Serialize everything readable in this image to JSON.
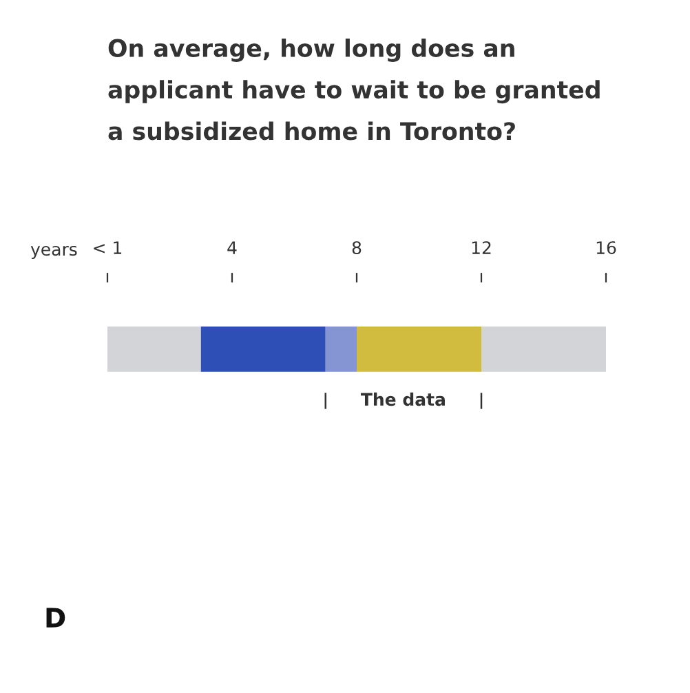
{
  "chart_data": {
    "type": "bar",
    "title": "On average, how long does an\napplicant have to wait to be granted\na subsidized home in Toronto?",
    "xlabel": "years",
    "orientation": "horizontal",
    "stacked": true,
    "categories": [
      null
    ],
    "series": [
      {
        "color": "#d3d4d8",
        "values": [
          3
        ]
      },
      {
        "color": "#2e50b6",
        "values": [
          4
        ]
      },
      {
        "color": "#8594d2",
        "values": [
          1
        ]
      },
      {
        "color": "#d1bc3f",
        "values": [
          4
        ]
      },
      {
        "color": "#d3d4d8",
        "values": [
          4
        ]
      }
    ],
    "xlim": [
      0,
      16
    ],
    "xticks": [
      {
        "value": 0,
        "label": "< 1"
      },
      4,
      8,
      12,
      16
    ],
    "annotations": [
      "The data",
      "D"
    ]
  }
}
